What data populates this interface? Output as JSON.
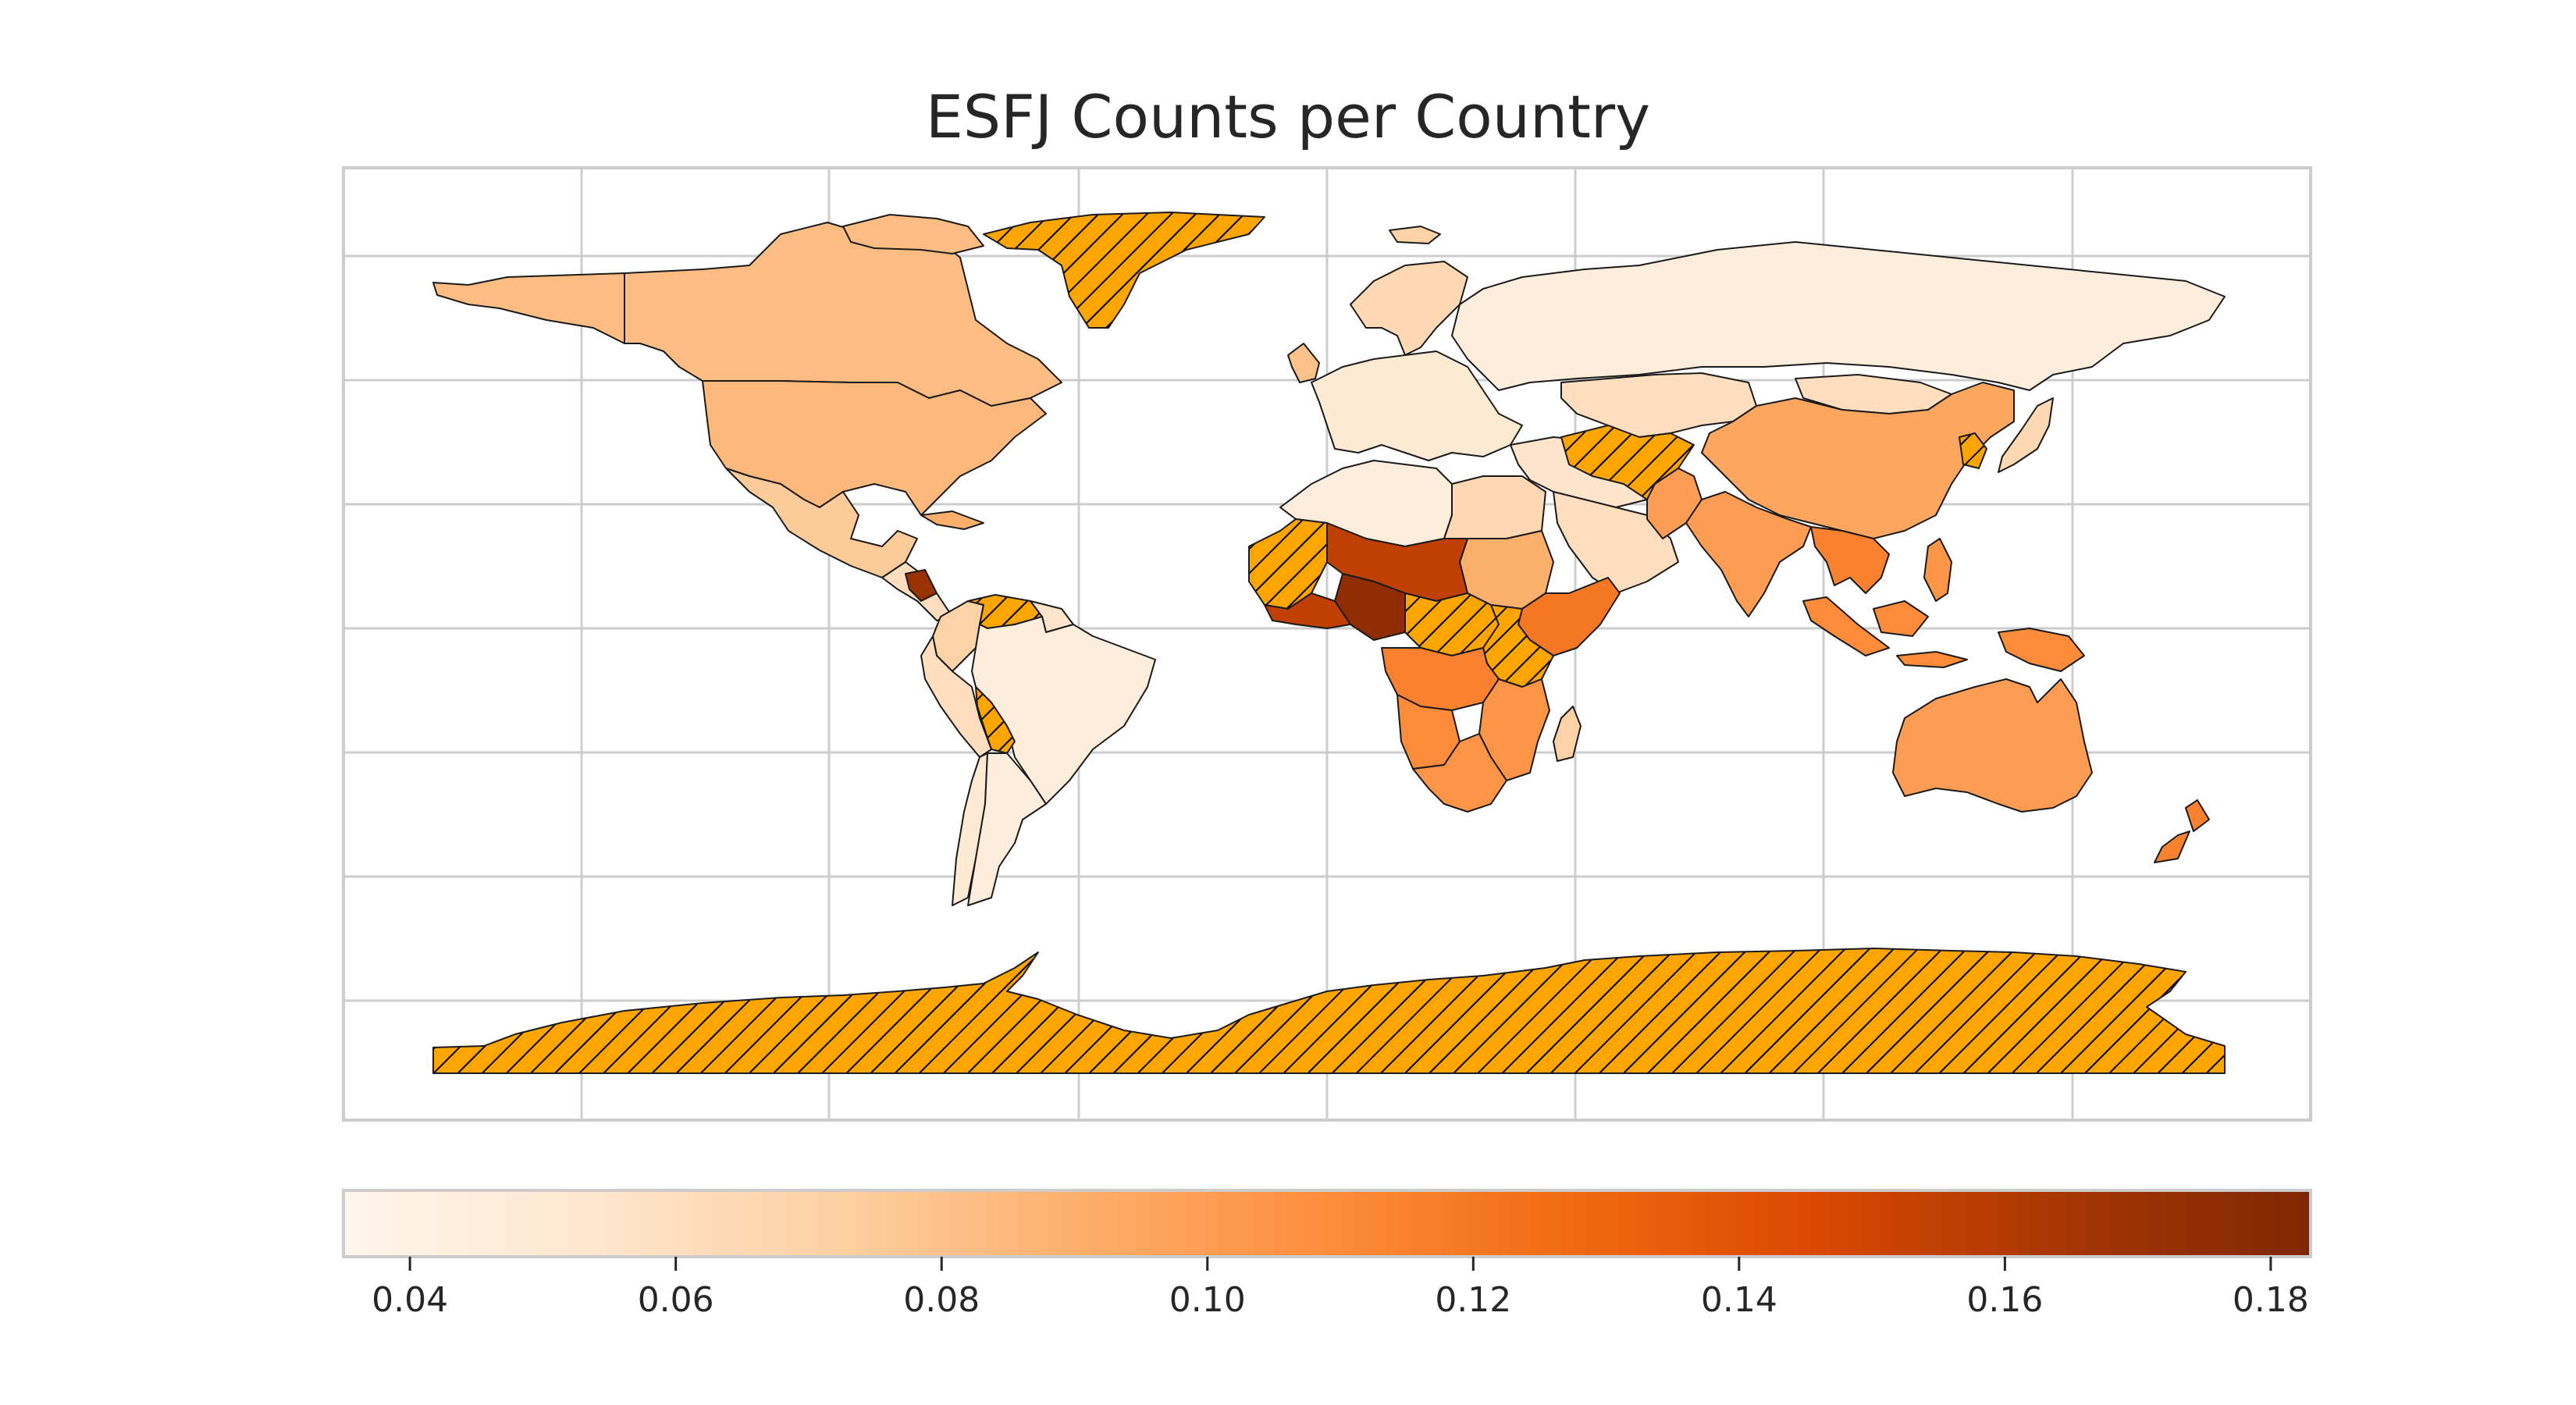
{
  "title": "ESFJ Counts per Country",
  "colormap": {
    "name": "Oranges",
    "min": 0.035,
    "max": 0.183,
    "stops": [
      "#fff5eb",
      "#fee6ce",
      "#fdd0a2",
      "#fdae6b",
      "#fd8d3c",
      "#f16913",
      "#d94801",
      "#a63603",
      "#7f2704"
    ]
  },
  "missing_style": {
    "fill": "#ffa500",
    "hatch": "diagonal",
    "hatch_color": "#000000"
  },
  "chart_data": {
    "type": "choropleth",
    "title": "ESFJ Counts per Country",
    "colorbar_ticks": [
      "0.04",
      "0.06",
      "0.08",
      "0.10",
      "0.12",
      "0.14",
      "0.16",
      "0.18"
    ],
    "colorbar_range": [
      0.035,
      0.183
    ],
    "grid": true,
    "regions": [
      {
        "id": "canada",
        "value": 0.083
      },
      {
        "id": "alaska",
        "value": 0.083
      },
      {
        "id": "usa",
        "value": 0.085
      },
      {
        "id": "mexico",
        "value": 0.075
      },
      {
        "id": "central-america",
        "value": 0.06
      },
      {
        "id": "nicaragua",
        "value": 0.17
      },
      {
        "id": "cuba",
        "value": 0.09
      },
      {
        "id": "greenland",
        "value": null
      },
      {
        "id": "iceland",
        "value": 0.07
      },
      {
        "id": "colombia",
        "value": 0.07
      },
      {
        "id": "venezuela",
        "value": null
      },
      {
        "id": "guianas",
        "value": 0.055
      },
      {
        "id": "peru",
        "value": 0.06
      },
      {
        "id": "brazil",
        "value": 0.045
      },
      {
        "id": "bolivia",
        "value": null
      },
      {
        "id": "chile",
        "value": 0.05
      },
      {
        "id": "argentina",
        "value": 0.045
      },
      {
        "id": "scandinavia",
        "value": 0.065
      },
      {
        "id": "uk",
        "value": 0.08
      },
      {
        "id": "western-europe",
        "value": 0.05
      },
      {
        "id": "russia",
        "value": 0.045
      },
      {
        "id": "kazakhstan",
        "value": 0.06
      },
      {
        "id": "middle-east",
        "value": 0.055
      },
      {
        "id": "arabia",
        "value": 0.06
      },
      {
        "id": "afghanistan",
        "value": null
      },
      {
        "id": "pakistan",
        "value": 0.1
      },
      {
        "id": "india",
        "value": 0.1
      },
      {
        "id": "china",
        "value": 0.095
      },
      {
        "id": "mongolia",
        "value": 0.06
      },
      {
        "id": "korea",
        "value": null
      },
      {
        "id": "japan",
        "value": 0.065
      },
      {
        "id": "southeast-asia",
        "value": 0.115
      },
      {
        "id": "philippines",
        "value": 0.105
      },
      {
        "id": "indonesia",
        "value": 0.11
      },
      {
        "id": "papua-new-guinea",
        "value": 0.11
      },
      {
        "id": "australia",
        "value": 0.1
      },
      {
        "id": "new-zealand",
        "value": 0.115
      },
      {
        "id": "north-africa-west",
        "value": 0.045
      },
      {
        "id": "egypt",
        "value": 0.065
      },
      {
        "id": "west-africa-sahel",
        "value": null
      },
      {
        "id": "nigeria",
        "value": 0.175
      },
      {
        "id": "niger-chad",
        "value": 0.155
      },
      {
        "id": "sudan",
        "value": 0.09
      },
      {
        "id": "horn-of-africa",
        "value": 0.12
      },
      {
        "id": "central-africa",
        "value": null
      },
      {
        "id": "east-africa",
        "value": null
      },
      {
        "id": "congo",
        "value": 0.115
      },
      {
        "id": "angola",
        "value": 0.11
      },
      {
        "id": "southern-africa",
        "value": 0.105
      },
      {
        "id": "madagascar",
        "value": 0.07
      },
      {
        "id": "antarctica",
        "value": null
      }
    ]
  }
}
